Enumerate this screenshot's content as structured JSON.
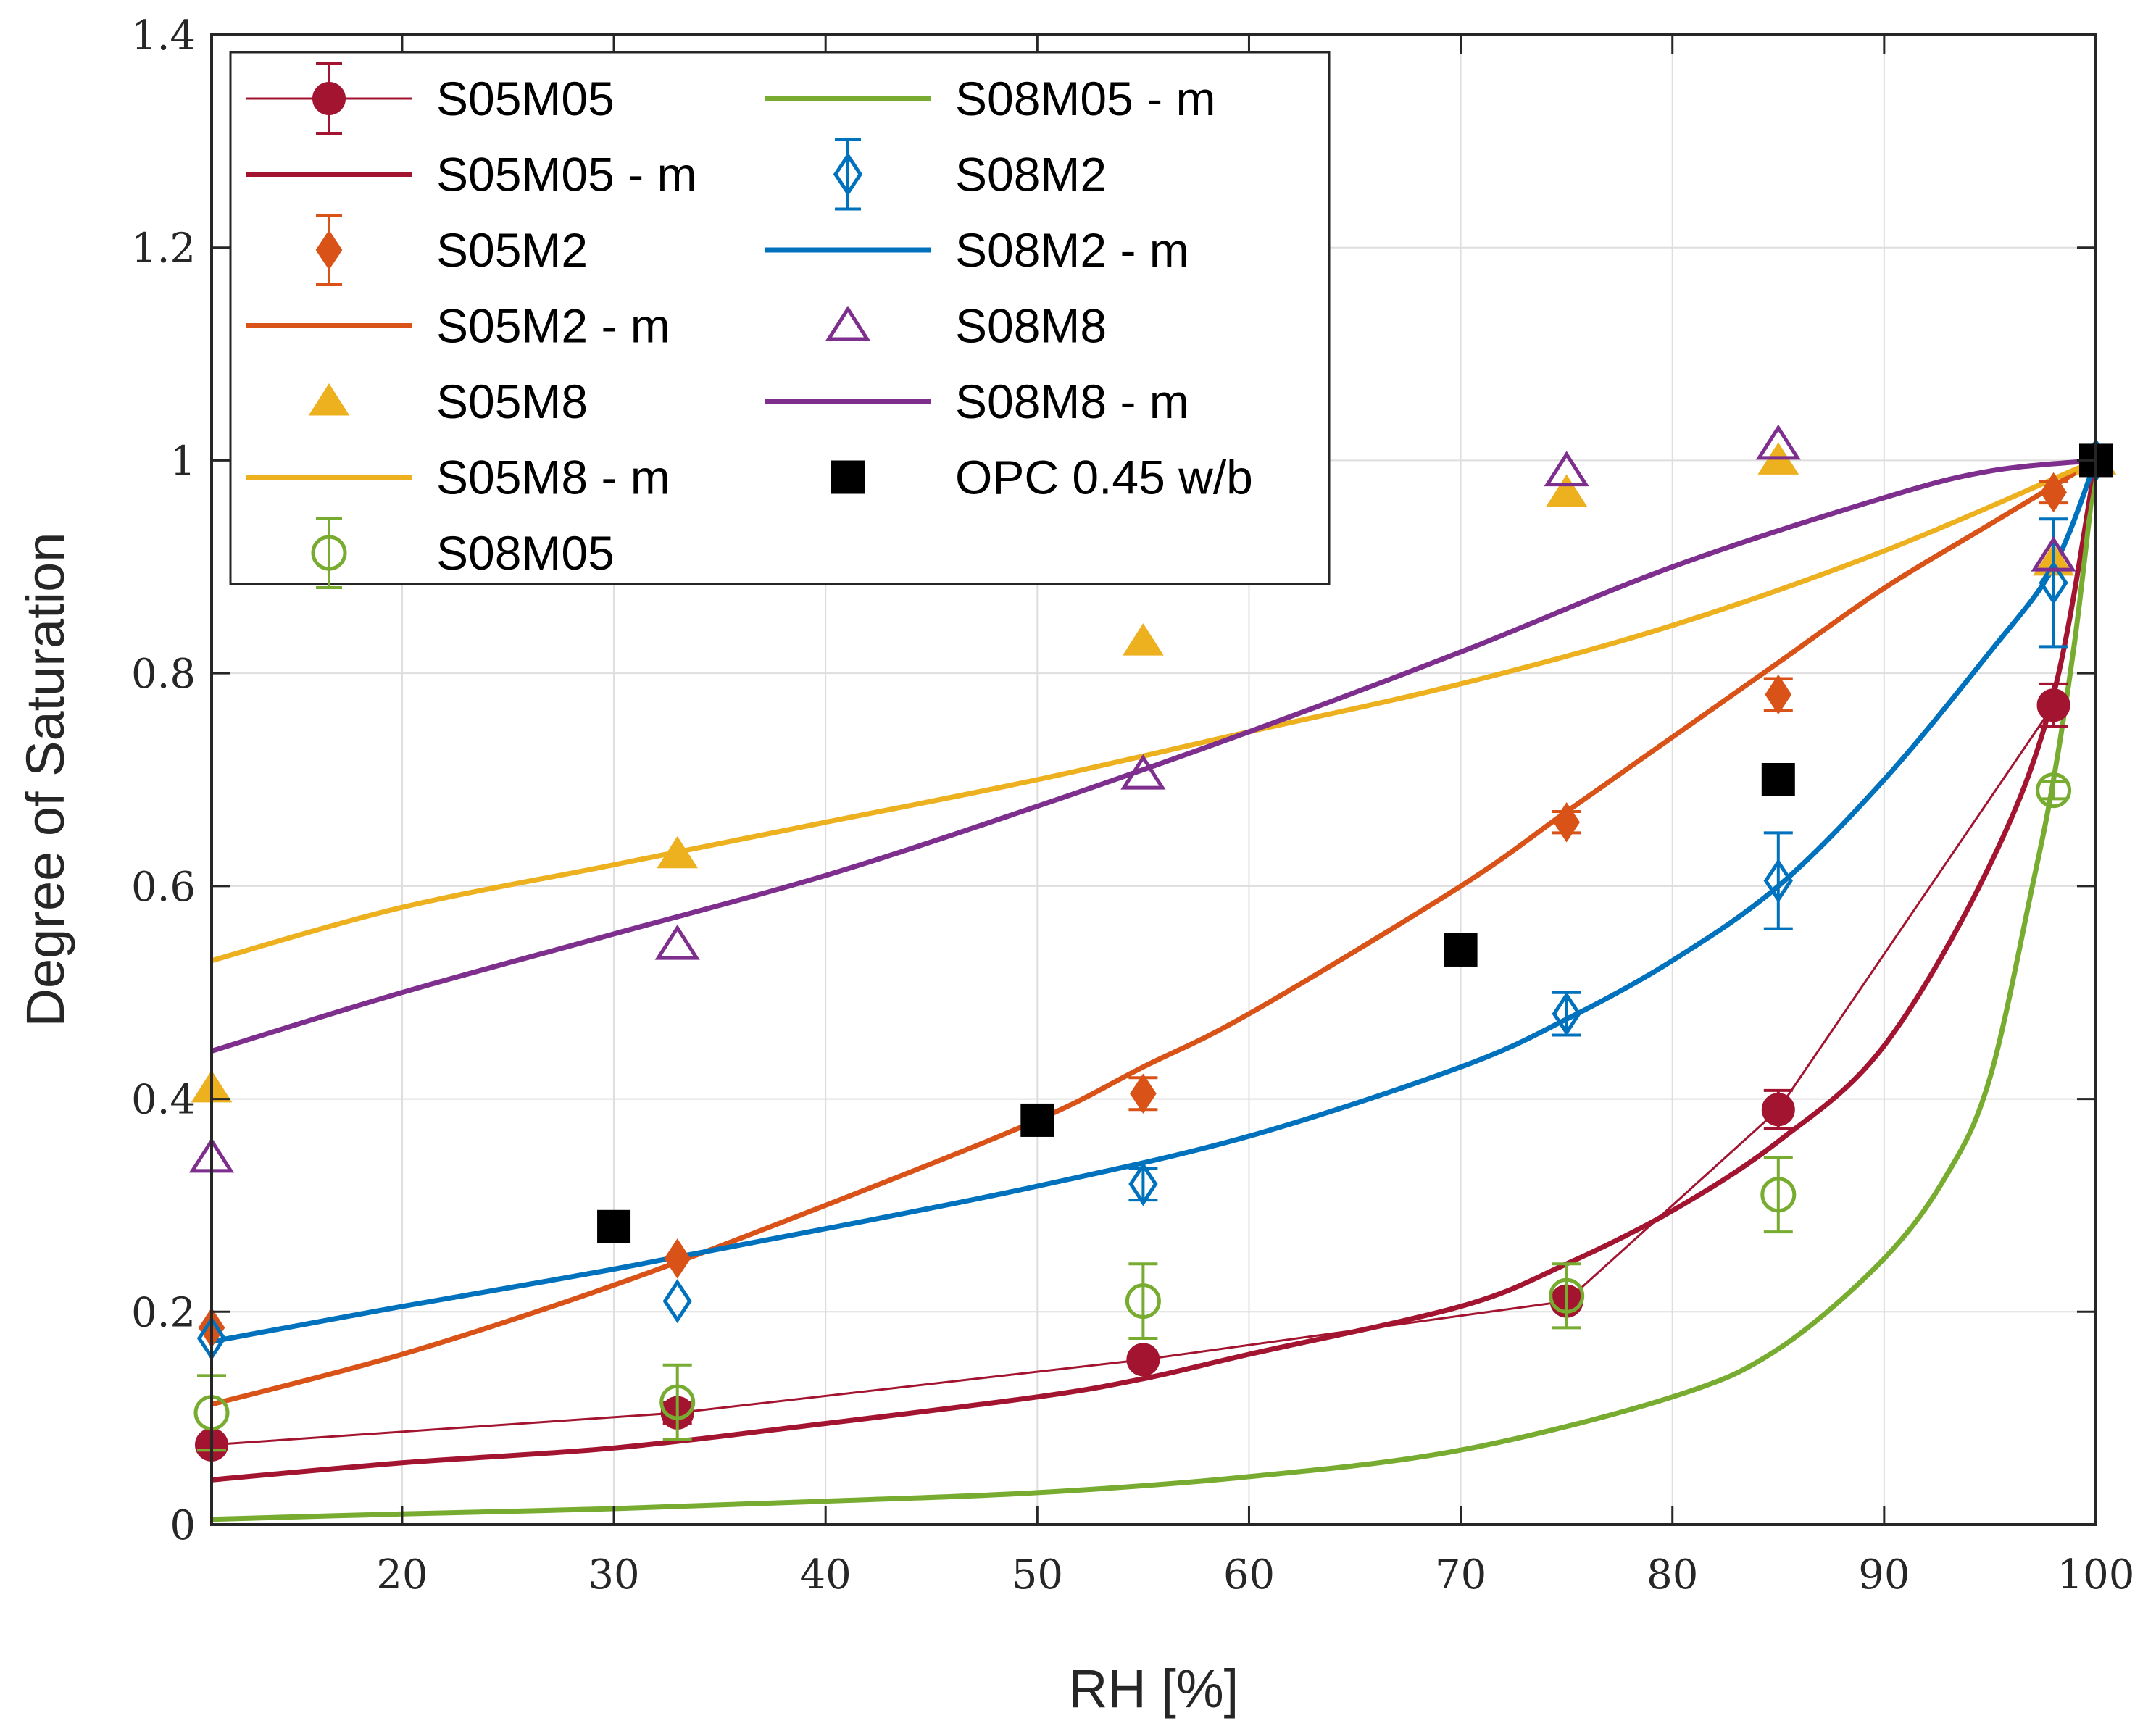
{
  "chart_data": {
    "type": "scatter",
    "title": "",
    "xlabel": "RH [%]",
    "ylabel": "Degree of Saturation",
    "xlim": [
      11,
      100
    ],
    "ylim": [
      0,
      1.4
    ],
    "grid": true,
    "legend_position": "top-left",
    "x_ticks": [
      20,
      30,
      40,
      50,
      60,
      70,
      80,
      90,
      100
    ],
    "y_ticks": [
      0,
      0.2,
      0.4,
      0.6,
      0.8,
      1,
      1.2,
      1.4
    ],
    "x_tick_labels": [
      "20",
      "30",
      "40",
      "50",
      "60",
      "70",
      "80",
      "90",
      "100"
    ],
    "y_tick_labels": [
      "0",
      "0.2",
      "0.4",
      "0.6",
      "0.8",
      "1",
      "1.2",
      "1.4"
    ],
    "series": [
      {
        "name": "S05M05",
        "kind": "points",
        "marker": "circle-filled",
        "color": "#A2142F",
        "connect": true,
        "x": [
          11,
          33,
          55,
          75,
          85,
          98,
          100
        ],
        "y": [
          0.075,
          0.105,
          0.155,
          0.21,
          0.39,
          0.77,
          1.0
        ],
        "err": [
          0,
          0.01,
          0,
          0,
          0.018,
          0.02,
          0
        ]
      },
      {
        "name": "S05M05 - m",
        "kind": "curve",
        "color": "#A2142F",
        "x": [
          11,
          20,
          30,
          40,
          50,
          55,
          60,
          70,
          75,
          80,
          85,
          90,
          95,
          98,
          100
        ],
        "y": [
          0.042,
          0.058,
          0.072,
          0.095,
          0.12,
          0.137,
          0.16,
          0.205,
          0.245,
          0.295,
          0.36,
          0.45,
          0.62,
          0.78,
          1.0
        ]
      },
      {
        "name": "S05M2",
        "kind": "points",
        "marker": "diamond-filled",
        "color": "#D95319",
        "x": [
          11,
          33,
          55,
          75,
          85,
          98,
          100
        ],
        "y": [
          0.185,
          0.25,
          0.405,
          0.66,
          0.78,
          0.97,
          1.0
        ],
        "err": [
          0,
          0,
          0.015,
          0.01,
          0.015,
          0.01,
          0
        ]
      },
      {
        "name": "S05M2 - m",
        "kind": "curve",
        "color": "#D95319",
        "x": [
          11,
          20,
          30,
          40,
          50,
          55,
          60,
          70,
          75,
          80,
          85,
          90,
          95,
          100
        ],
        "y": [
          0.113,
          0.16,
          0.225,
          0.3,
          0.38,
          0.43,
          0.48,
          0.6,
          0.67,
          0.74,
          0.81,
          0.88,
          0.94,
          1.0
        ]
      },
      {
        "name": "S05M8",
        "kind": "points",
        "marker": "triangle-filled",
        "color": "#EDB120",
        "x": [
          11,
          33,
          55,
          75,
          85,
          98,
          100
        ],
        "y": [
          0.41,
          0.63,
          0.83,
          0.97,
          1.0,
          0.905,
          1.0
        ],
        "err": [
          0,
          0,
          0,
          0,
          0,
          0,
          0
        ]
      },
      {
        "name": "S05M8 - m",
        "kind": "curve",
        "color": "#EDB120",
        "x": [
          11,
          20,
          30,
          40,
          50,
          60,
          70,
          80,
          90,
          100
        ],
        "y": [
          0.53,
          0.58,
          0.62,
          0.66,
          0.7,
          0.745,
          0.79,
          0.845,
          0.915,
          1.0
        ]
      },
      {
        "name": "S08M05",
        "kind": "points",
        "marker": "circle-open",
        "color": "#77AC30",
        "x": [
          11,
          33,
          55,
          75,
          85,
          98
        ],
        "y": [
          0.105,
          0.115,
          0.21,
          0.215,
          0.31,
          0.69
        ],
        "err": [
          0.035,
          0.035,
          0.035,
          0.03,
          0.035,
          0.008
        ]
      },
      {
        "name": "S08M05 - m",
        "kind": "curve",
        "color": "#77AC30",
        "x": [
          11,
          20,
          30,
          40,
          50,
          60,
          70,
          80,
          85,
          90,
          93,
          95,
          97,
          98,
          99,
          100
        ],
        "y": [
          0.005,
          0.01,
          0.015,
          0.022,
          0.03,
          0.045,
          0.07,
          0.12,
          0.165,
          0.25,
          0.33,
          0.42,
          0.6,
          0.7,
          0.83,
          1.0
        ]
      },
      {
        "name": "S08M2",
        "kind": "points",
        "marker": "diamond-open",
        "color": "#0072BD",
        "x": [
          11,
          33,
          55,
          75,
          85,
          98,
          100
        ],
        "y": [
          0.175,
          0.21,
          0.32,
          0.48,
          0.605,
          0.885,
          1.0
        ],
        "err": [
          0,
          0,
          0.015,
          0.02,
          0.045,
          0.06,
          0
        ]
      },
      {
        "name": "S08M2 - m",
        "kind": "curve",
        "color": "#0072BD",
        "x": [
          11,
          20,
          30,
          40,
          50,
          60,
          70,
          75,
          80,
          85,
          90,
          95,
          98,
          100
        ],
        "y": [
          0.172,
          0.205,
          0.24,
          0.278,
          0.318,
          0.365,
          0.43,
          0.475,
          0.53,
          0.6,
          0.7,
          0.82,
          0.9,
          1.0
        ]
      },
      {
        "name": "S08M8",
        "kind": "points",
        "marker": "triangle-open",
        "color": "#7E2F8E",
        "x": [
          11,
          33,
          55,
          75,
          85,
          98
        ],
        "y": [
          0.345,
          0.545,
          0.705,
          0.99,
          1.015,
          0.91
        ],
        "err": [
          0,
          0,
          0,
          0,
          0,
          0
        ]
      },
      {
        "name": "S08M8 - m",
        "kind": "curve",
        "color": "#7E2F8E",
        "x": [
          11,
          20,
          30,
          40,
          50,
          60,
          70,
          80,
          90,
          95,
          100
        ],
        "y": [
          0.445,
          0.5,
          0.555,
          0.61,
          0.675,
          0.745,
          0.82,
          0.9,
          0.965,
          0.99,
          1.0
        ]
      },
      {
        "name": "OPC 0.45 w/b",
        "kind": "points",
        "marker": "square-filled",
        "color": "#000000",
        "x": [
          30,
          50,
          70,
          85,
          100
        ],
        "y": [
          0.28,
          0.38,
          0.54,
          0.7,
          1.0
        ],
        "err": [
          0,
          0,
          0,
          0,
          0
        ]
      }
    ]
  }
}
